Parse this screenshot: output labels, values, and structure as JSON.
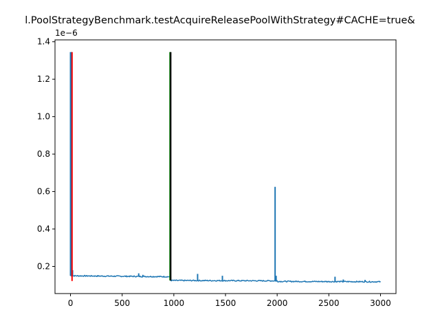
{
  "chart_data": {
    "type": "line",
    "title": "l.PoolStrategyBenchmark.testAcquireReleasePoolWithStrategy#CACHE=true&",
    "xlabel": "",
    "ylabel": "",
    "y_offset_label": "1e−6",
    "xlim": [
      -150,
      3150
    ],
    "ylim": [
      0.055,
      1.41
    ],
    "x_ticks": [
      0,
      500,
      1000,
      1500,
      2000,
      2500,
      3000
    ],
    "y_ticks": [
      0.2,
      0.4,
      0.6,
      0.8,
      1.0,
      1.2,
      1.4
    ],
    "x_tick_labels": [
      "0",
      "500",
      "1000",
      "1500",
      "2000",
      "2500",
      "3000"
    ],
    "y_tick_labels": [
      "0.2",
      "0.4",
      "0.6",
      "0.8",
      "1.0",
      "1.2",
      "1.4"
    ],
    "grid": false,
    "series": [
      {
        "color": "#1f77b4",
        "segments": [
          {
            "x_start": 0,
            "x_end": 970,
            "y_start": 0.15,
            "y_end": 0.145
          },
          {
            "x_start": 970,
            "x_end": 2000,
            "y_start": 0.125,
            "y_end": 0.123
          },
          {
            "x_start": 2000,
            "x_end": 3000,
            "y_start": 0.12,
            "y_end": 0.118
          }
        ],
        "spikes": [
          {
            "x": 0,
            "y": 1.345
          },
          {
            "x": 10,
            "y": 1.345
          },
          {
            "x": 20,
            "y": 0.18
          },
          {
            "x": 200,
            "y": 0.152
          },
          {
            "x": 660,
            "y": 0.163
          },
          {
            "x": 700,
            "y": 0.155
          },
          {
            "x": 1230,
            "y": 0.16
          },
          {
            "x": 1470,
            "y": 0.15
          },
          {
            "x": 1980,
            "y": 0.625
          },
          {
            "x": 1990,
            "y": 0.15
          },
          {
            "x": 2560,
            "y": 0.145
          },
          {
            "x": 2640,
            "y": 0.13
          },
          {
            "x": 2850,
            "y": 0.128
          }
        ]
      }
    ],
    "vertical_lines": [
      {
        "x": 15,
        "y_start": 0.122,
        "y_end": 1.345,
        "color": "#ff0000"
      },
      {
        "x": 963,
        "y_start": 0.125,
        "y_end": 1.345,
        "color": "#008000"
      },
      {
        "x": 970,
        "y_start": 0.125,
        "y_end": 1.345,
        "color": "#000000"
      }
    ]
  }
}
